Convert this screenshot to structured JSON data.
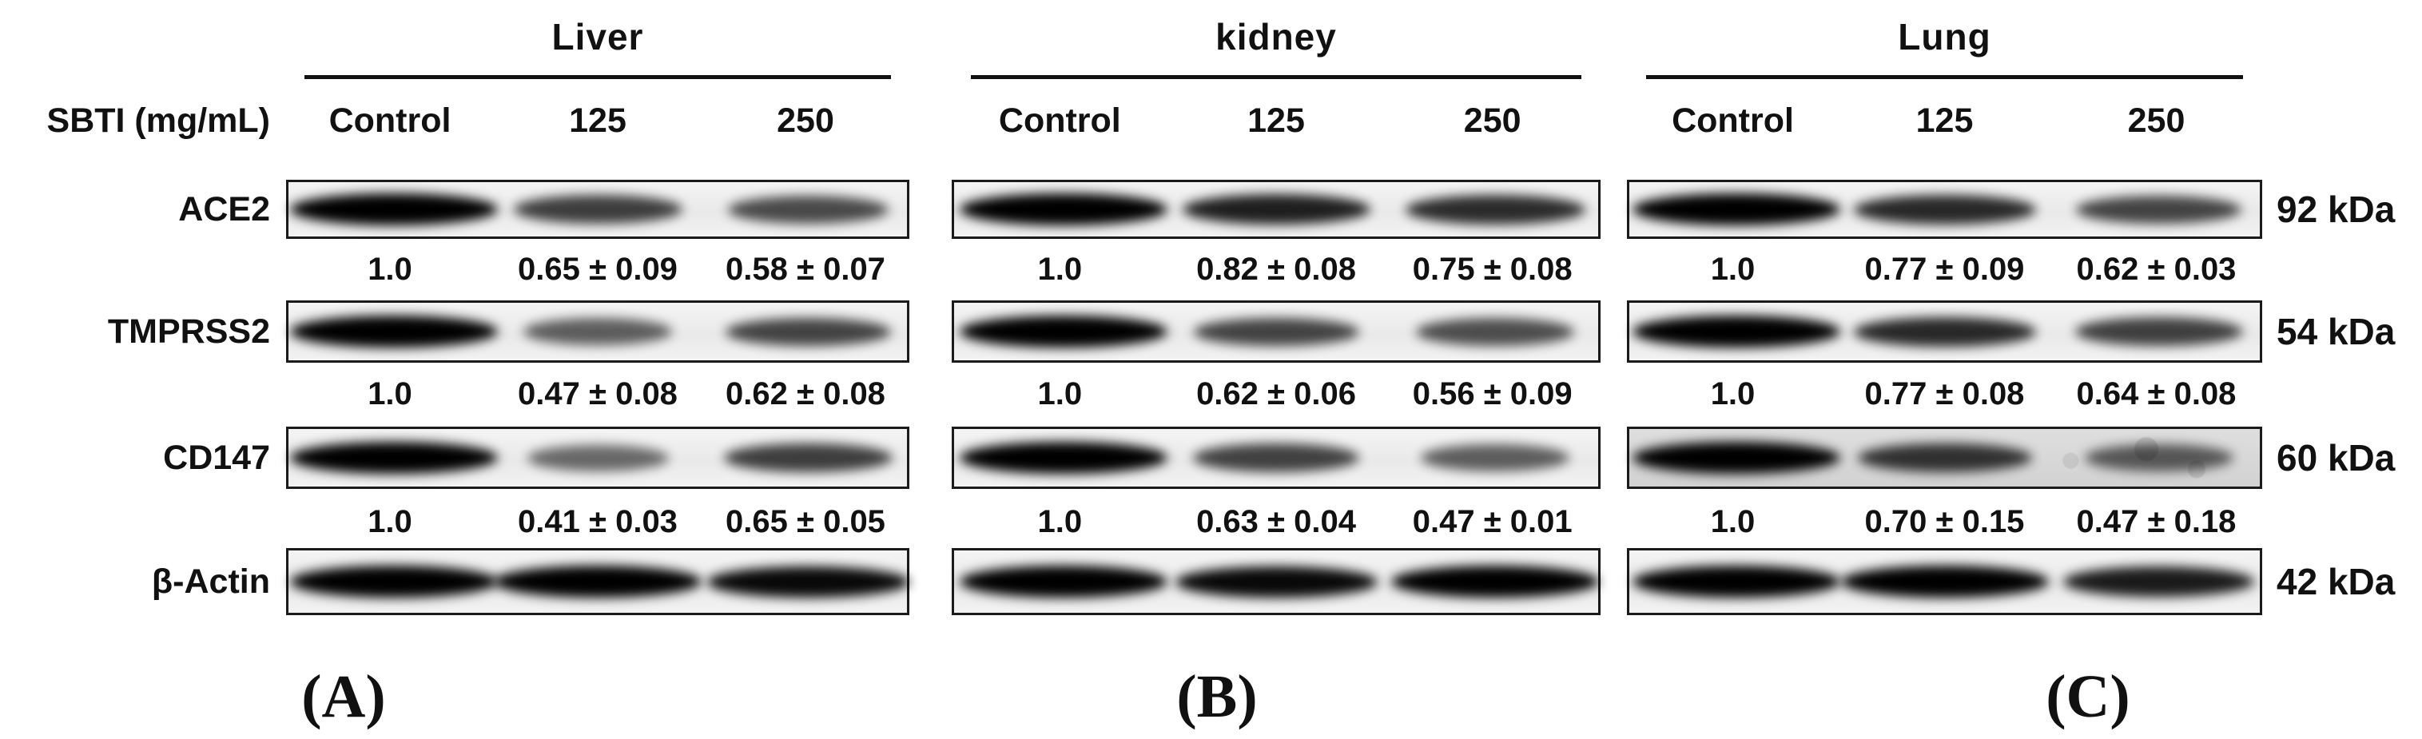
{
  "figure_type": "western-blot",
  "sbti_label": "SBTI (mg/mL)",
  "lanes": [
    "Control",
    "125",
    "250"
  ],
  "proteins": [
    "ACE2",
    "TMPRSS2",
    "CD147",
    "β-Actin"
  ],
  "kda_labels": [
    "92 kDa",
    "54 kDa",
    "60 kDa",
    "42 kDa"
  ],
  "colors": {
    "text": "#111111",
    "blot_border": "#1b1b1b",
    "blot_bg": "#efefef",
    "band": "#000000"
  },
  "panels": [
    {
      "letter": "(A)",
      "organ": "Liver",
      "rows": [
        {
          "protein": "ACE2",
          "values": [
            "1.0",
            "0.65 ± 0.09",
            "0.58 ± 0.07"
          ],
          "intensities": [
            1.0,
            0.65,
            0.58
          ]
        },
        {
          "protein": "TMPRSS2",
          "values": [
            "1.0",
            "0.47 ± 0.08",
            "0.62 ± 0.08"
          ],
          "intensities": [
            1.0,
            0.47,
            0.62
          ]
        },
        {
          "protein": "CD147",
          "values": [
            "1.0",
            "0.41 ± 0.03",
            "0.65 ± 0.05"
          ],
          "intensities": [
            1.0,
            0.41,
            0.65
          ]
        },
        {
          "protein": "β-Actin",
          "values": [],
          "intensities": [
            1.0,
            1.0,
            0.95
          ]
        }
      ]
    },
    {
      "letter": "(B)",
      "organ": "kidney",
      "rows": [
        {
          "protein": "ACE2",
          "values": [
            "1.0",
            "0.82 ± 0.08",
            "0.75 ± 0.08"
          ],
          "intensities": [
            1.0,
            0.82,
            0.75
          ]
        },
        {
          "protein": "TMPRSS2",
          "values": [
            "1.0",
            "0.62 ± 0.06",
            "0.56 ± 0.09"
          ],
          "intensities": [
            1.0,
            0.62,
            0.56
          ]
        },
        {
          "protein": "CD147",
          "values": [
            "1.0",
            "0.63 ± 0.04",
            "0.47 ± 0.01"
          ],
          "intensities": [
            1.0,
            0.63,
            0.47
          ]
        },
        {
          "protein": "β-Actin",
          "values": [],
          "intensities": [
            1.0,
            0.95,
            1.0
          ]
        }
      ]
    },
    {
      "letter": "(C)",
      "organ": "Lung",
      "rows": [
        {
          "protein": "ACE2",
          "values": [
            "1.0",
            "0.77 ± 0.09",
            "0.62 ± 0.03"
          ],
          "intensities": [
            1.0,
            0.77,
            0.62
          ]
        },
        {
          "protein": "TMPRSS2",
          "values": [
            "1.0",
            "0.77 ± 0.08",
            "0.64 ± 0.08"
          ],
          "intensities": [
            1.0,
            0.77,
            0.64
          ]
        },
        {
          "protein": "CD147",
          "values": [
            "1.0",
            "0.70 ± 0.15",
            "0.47 ± 0.18"
          ],
          "intensities": [
            1.0,
            0.7,
            0.47
          ]
        },
        {
          "protein": "β-Actin",
          "values": [],
          "intensities": [
            1.0,
            1.0,
            0.85
          ]
        }
      ]
    }
  ]
}
